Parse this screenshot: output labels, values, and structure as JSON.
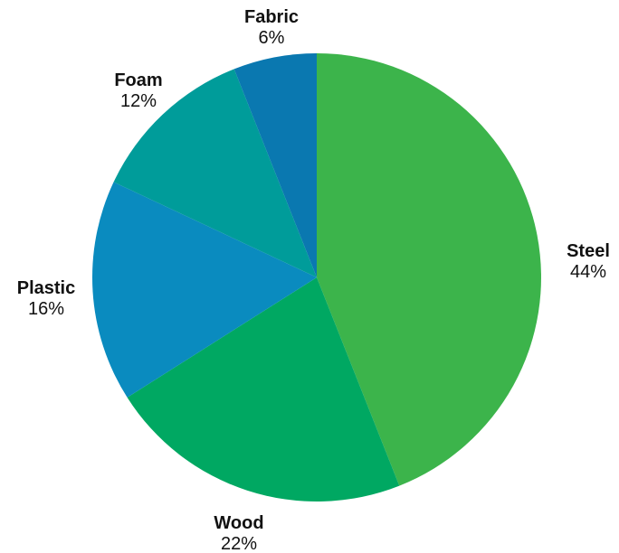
{
  "chart_data": {
    "type": "pie",
    "title": "",
    "slices": [
      {
        "label": "Steel",
        "value": 44,
        "display": "44%",
        "color": "#3cb44b"
      },
      {
        "label": "Wood",
        "value": 22,
        "display": "22%",
        "color": "#00a862"
      },
      {
        "label": "Plastic",
        "value": 16,
        "display": "16%",
        "color": "#0a8bbf"
      },
      {
        "label": "Foam",
        "value": 12,
        "display": "12%",
        "color": "#009c9a"
      },
      {
        "label": "Fabric",
        "value": 6,
        "display": "6%",
        "color": "#0a78b0"
      }
    ],
    "start": "12 o'clock",
    "direction": "clockwise"
  }
}
